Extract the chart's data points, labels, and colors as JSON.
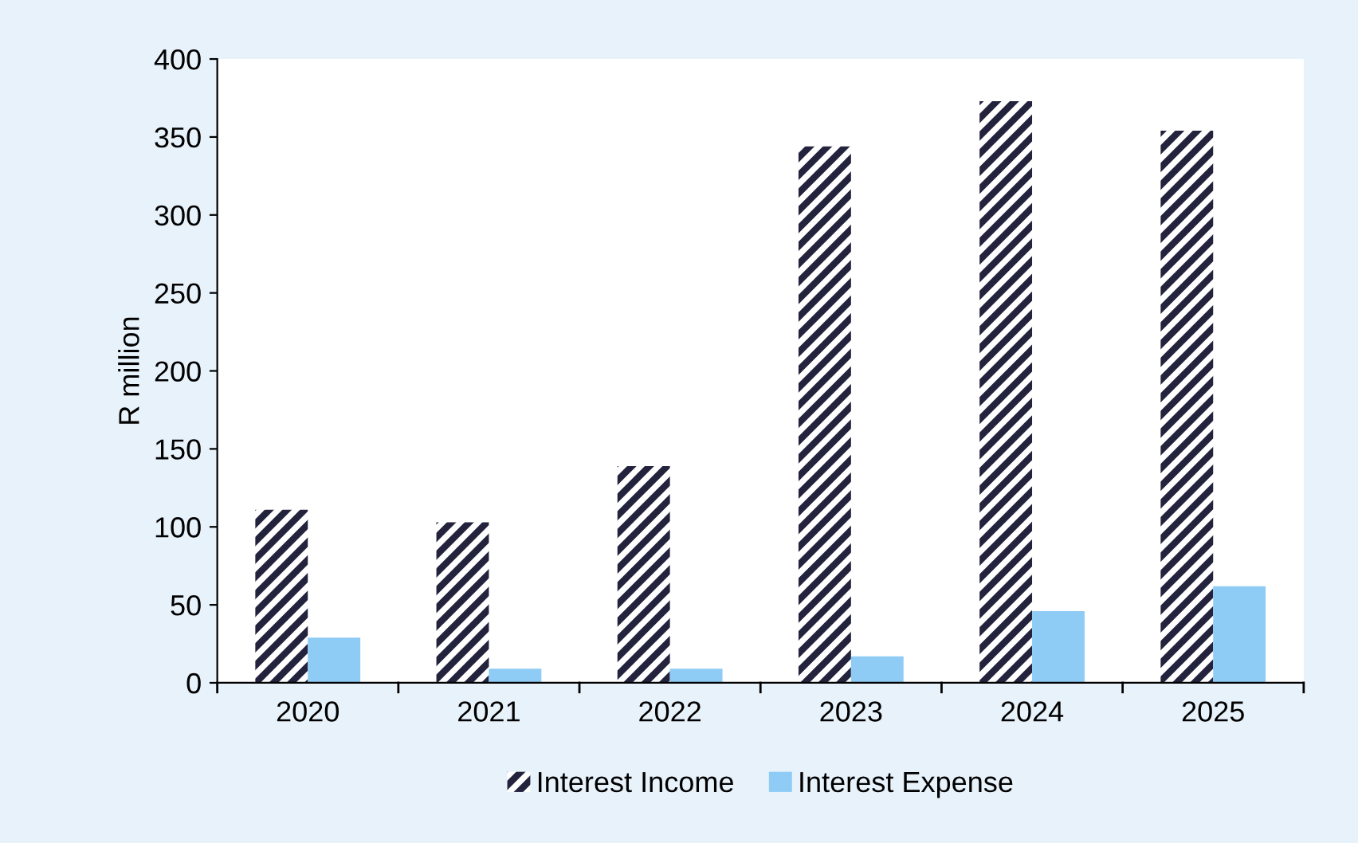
{
  "chart_data": {
    "type": "bar",
    "ylabel": "R million",
    "categories": [
      "2020",
      "2021",
      "2022",
      "2023",
      "2024",
      "2025"
    ],
    "series": [
      {
        "name": "Interest Income",
        "color": "#23233d",
        "values": [
          111,
          103,
          139,
          344,
          373,
          354
        ]
      },
      {
        "name": "Interest Expense",
        "color": "#8ecbf5",
        "values": [
          29,
          9,
          9,
          17,
          46,
          62
        ]
      }
    ],
    "ylim": [
      0,
      400
    ],
    "yticks": [
      0,
      50,
      100,
      150,
      200,
      250,
      300,
      350,
      400
    ],
    "grid": false,
    "legend": "bottom"
  }
}
